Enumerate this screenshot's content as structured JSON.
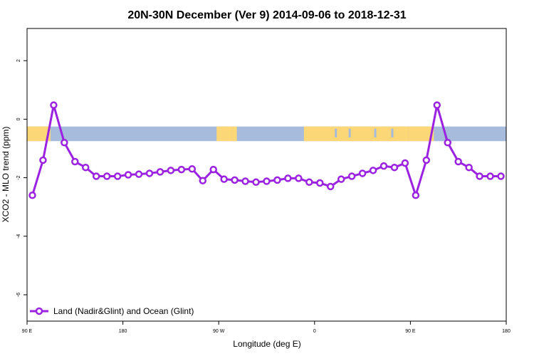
{
  "chart_data": {
    "type": "line",
    "title": "20N-30N December (Ver 9)   2014-09-06 to 2018-12-31",
    "xlabel": "Longitude (deg E)",
    "ylabel": "XCO2 - MLO trend (ppm)",
    "xlim": [
      90,
      540
    ],
    "ylim": [
      -6.9,
      3.1
    ],
    "x_ticks": [
      {
        "value": 90,
        "label": "90 E"
      },
      {
        "value": 180,
        "label": "180"
      },
      {
        "value": 270,
        "label": "90 W"
      },
      {
        "value": 360,
        "label": "0"
      },
      {
        "value": 450,
        "label": "90 E"
      },
      {
        "value": 540,
        "label": "180"
      }
    ],
    "y_ticks": [
      {
        "value": 2,
        "label": "2"
      },
      {
        "value": 0,
        "label": "0"
      },
      {
        "value": -2,
        "label": "-2"
      },
      {
        "value": -4,
        "label": "-4"
      },
      {
        "value": -6,
        "label": "-6"
      }
    ],
    "map_band": {
      "y_top": -0.25,
      "y_bottom": -0.75,
      "ocean_color": "#a7bcdc",
      "land_color": "#fbd777"
    },
    "series": [
      {
        "name": "Land (Nadir&Glint) and Ocean (Glint)",
        "color": "#9b22e0",
        "x": [
          95,
          105,
          115,
          125,
          135,
          145,
          155,
          165,
          175,
          185,
          195,
          205,
          215,
          225,
          235,
          245,
          255,
          265,
          275,
          285,
          295,
          305,
          315,
          325,
          335,
          345,
          355,
          365,
          375,
          385,
          395,
          405,
          415,
          425,
          435,
          445,
          455,
          465,
          475,
          485,
          495,
          505,
          515,
          525,
          535
        ],
        "y": [
          -2.6,
          -1.4,
          0.48,
          -0.8,
          -1.45,
          -1.65,
          -1.95,
          -1.95,
          -1.95,
          -1.9,
          -1.88,
          -1.85,
          -1.8,
          -1.75,
          -1.72,
          -1.7,
          -2.1,
          -1.72,
          -2.05,
          -2.08,
          -2.12,
          -2.15,
          -2.12,
          -2.08,
          -2.02,
          -2.02,
          -2.15,
          -2.18,
          -2.3,
          -2.05,
          -1.95,
          -1.85,
          -1.75,
          -1.6,
          -1.65,
          -1.5,
          -2.6,
          -1.4,
          0.48,
          -0.8,
          -1.45,
          -1.65,
          -1.95,
          -1.95,
          -1.95
        ]
      }
    ],
    "legend": "bottom-left"
  }
}
